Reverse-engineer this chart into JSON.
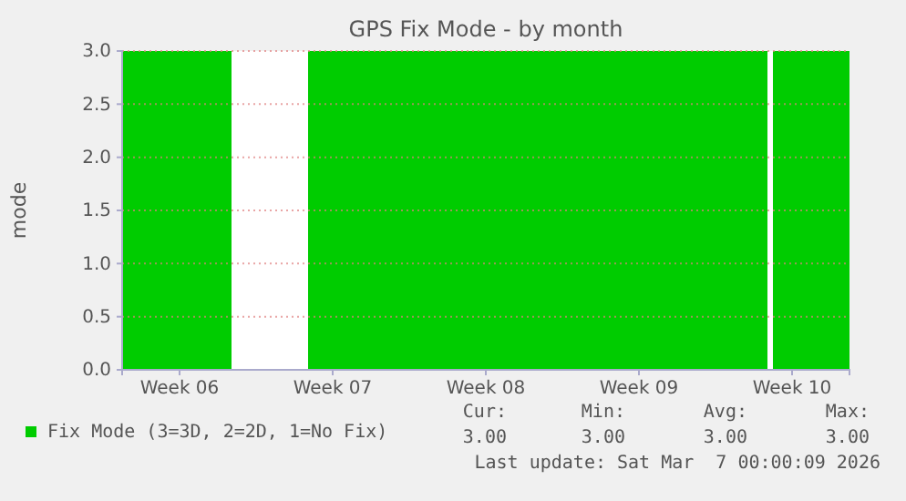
{
  "chart_data": {
    "type": "area",
    "title": "GPS Fix Mode - by month",
    "ylabel": "mode",
    "categories": [
      null,
      null,
      null,
      null,
      null,
      null,
      null,
      null,
      null,
      null,
      "Week 06",
      null,
      null,
      null,
      null,
      null,
      null,
      null,
      null,
      null,
      null,
      null,
      null,
      null,
      null,
      null,
      null,
      null,
      null,
      null,
      null,
      null,
      null,
      null,
      null,
      null,
      null,
      null,
      "Week 07",
      null,
      null,
      null,
      null,
      null,
      null,
      null,
      null,
      null,
      null,
      null,
      null,
      null,
      null,
      null,
      null,
      null,
      null,
      null,
      null,
      null,
      null,
      null,
      null,
      null,
      null,
      null,
      "Week 08",
      null,
      null,
      null,
      null,
      null,
      null,
      null,
      null,
      null,
      null,
      null,
      null,
      null,
      null,
      null,
      null,
      null,
      null,
      null,
      null,
      null,
      null,
      null,
      null,
      null,
      null,
      null,
      "Week 09",
      null,
      null,
      null,
      null,
      null,
      null,
      null,
      null,
      null,
      null,
      null,
      null,
      null,
      null,
      null,
      null,
      null,
      null,
      null,
      null,
      null,
      null,
      null,
      null,
      null,
      null,
      null,
      "Week 10",
      null,
      null,
      null,
      null,
      null,
      null,
      null,
      null,
      null,
      null
    ],
    "series": [
      {
        "name": "Fix Mode (3=3D, 2=2D, 1=No Fix)",
        "color": "#00cc00",
        "values": [
          3,
          3,
          3,
          3,
          3,
          3,
          3,
          3,
          3,
          3,
          3,
          3,
          3,
          3,
          3,
          3,
          3,
          3,
          3,
          3,
          null,
          null,
          null,
          null,
          null,
          null,
          null,
          null,
          null,
          null,
          null,
          null,
          null,
          null,
          3,
          3,
          3,
          3,
          3,
          3,
          3,
          3,
          3,
          3,
          3,
          3,
          3,
          3,
          3,
          3,
          3,
          3,
          3,
          3,
          3,
          3,
          3,
          3,
          3,
          3,
          3,
          3,
          3,
          3,
          3,
          3,
          3,
          3,
          3,
          3,
          3,
          3,
          3,
          3,
          3,
          3,
          3,
          3,
          3,
          3,
          3,
          3,
          3,
          3,
          3,
          3,
          3,
          3,
          3,
          3,
          3,
          3,
          3,
          3,
          3,
          3,
          3,
          3,
          3,
          3,
          3,
          3,
          3,
          3,
          3,
          3,
          3,
          3,
          3,
          3,
          3,
          3,
          3,
          3,
          3,
          3,
          3,
          3,
          null,
          3,
          3,
          3,
          3,
          3,
          3,
          3,
          3,
          3,
          3,
          3,
          3,
          3,
          3
        ]
      }
    ],
    "ylim": [
      0,
      3
    ],
    "yticks": [
      {
        "value": 0,
        "label": "0.0"
      },
      {
        "value": 0.5,
        "label": "0.5"
      },
      {
        "value": 1,
        "label": "1.0"
      },
      {
        "value": 1.5,
        "label": "1.5"
      },
      {
        "value": 2,
        "label": "2.0"
      },
      {
        "value": 2.5,
        "label": "2.5"
      },
      {
        "value": 3,
        "label": "3.0"
      }
    ],
    "grid": "y",
    "legend": "bottom",
    "annotations": [
      "Cur:",
      "Min:",
      "Avg:",
      "Max:",
      "3.00",
      "3.00",
      "3.00",
      "3.00",
      "Last update: Sat Mar  7 00:00:09 2026"
    ]
  }
}
